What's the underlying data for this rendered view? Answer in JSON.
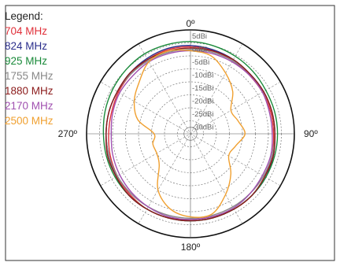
{
  "chart_data": {
    "type": "polar-line",
    "legend_title": "Legend:",
    "angle_labels": [
      "0º",
      "90º",
      "180º",
      "270º"
    ],
    "angle_ticks": [
      0,
      90,
      180,
      270
    ],
    "radial_axis": {
      "unit": "dBi",
      "max": 5,
      "min": -35,
      "rings": [
        5,
        0,
        -5,
        -10,
        -15,
        -20,
        -25,
        -30
      ],
      "ring_labels": [
        "5dBi",
        "0dBi",
        "-5dBi",
        "-10dBi",
        "-15dBi",
        "-20dBi",
        "-25dBi",
        "-30dBi"
      ]
    },
    "grid": true,
    "legend_position": "top-left",
    "angles_deg": [
      0,
      15,
      30,
      45,
      60,
      75,
      90,
      105,
      120,
      135,
      150,
      165,
      180,
      195,
      210,
      225,
      240,
      255,
      270,
      285,
      300,
      315,
      330,
      345
    ],
    "series": [
      {
        "name": "704 MHz",
        "color": "#e0303a",
        "values": [
          -1.5,
          -1.8,
          -2.5,
          -3,
          -3,
          -3,
          -3,
          -2.5,
          -2,
          -1.5,
          -1.5,
          -2,
          -2,
          -1.5,
          -1.5,
          -2,
          -2.5,
          -3,
          -3.5,
          -3.5,
          -3,
          -2.5,
          -2,
          -1.5
        ]
      },
      {
        "name": "824 MHz",
        "color": "#2b2f8c",
        "values": [
          -1,
          -1.5,
          -2,
          -2.5,
          -2.5,
          -2.5,
          -2.5,
          -2,
          -1.5,
          -1.5,
          -1.5,
          -1.5,
          -1.5,
          -1.5,
          -1.5,
          -1.5,
          -2,
          -2.5,
          -2.5,
          -2.5,
          -2.5,
          -2,
          -1.5,
          -1
        ]
      },
      {
        "name": "925 MHz",
        "color": "#1a8a3a",
        "values": [
          0.5,
          0,
          -0.5,
          -1,
          -1.5,
          -1.5,
          -1.5,
          -1.5,
          -1.5,
          -1.5,
          -1.5,
          -1.5,
          -1.5,
          -1.5,
          -1.5,
          -1.5,
          -1.5,
          -1.5,
          -1.5,
          -1,
          -0.5,
          0,
          0.5,
          0.5
        ]
      },
      {
        "name": "1755 MHz",
        "color": "#888888",
        "values": [
          -2.5,
          -2.5,
          -2.5,
          -2.5,
          -2.5,
          -2.5,
          -2.5,
          -2.5,
          -2.5,
          -2.5,
          -2.5,
          -2.5,
          -2.5,
          -2.5,
          -2.5,
          -2.5,
          -2.5,
          -2.5,
          -2.5,
          -2.5,
          -2.5,
          -2.5,
          -2.5,
          -2.5
        ]
      },
      {
        "name": "1880 MHz",
        "color": "#8b1a1a",
        "values": [
          -2,
          -2,
          -2,
          -2.5,
          -2.5,
          -2.5,
          -2.5,
          -2,
          -2,
          -1.5,
          -1.5,
          -1.5,
          -1.5,
          -1.5,
          -1.5,
          -1.5,
          -2,
          -2,
          -2.5,
          -2.5,
          -2.5,
          -2,
          -2,
          -2
        ]
      },
      {
        "name": "2170 MHz",
        "color": "#a050b0",
        "values": [
          -3,
          -3,
          -3,
          -3,
          -3,
          -3.5,
          -3.5,
          -3,
          -3,
          -2.5,
          -2,
          -2,
          -2,
          -2,
          -2.5,
          -3,
          -3.5,
          -4,
          -4.5,
          -4,
          -3.5,
          -3.5,
          -3,
          -3
        ]
      },
      {
        "name": "2500 MHz",
        "color": "#f0a030",
        "values": [
          -3,
          -4,
          -8,
          -12,
          -17,
          -16,
          -14,
          -17,
          -18,
          -13,
          -8,
          -3,
          -3,
          -5,
          -10,
          -18,
          -20,
          -20,
          -21,
          -14,
          -10,
          -7,
          -3,
          -2
        ]
      }
    ]
  }
}
